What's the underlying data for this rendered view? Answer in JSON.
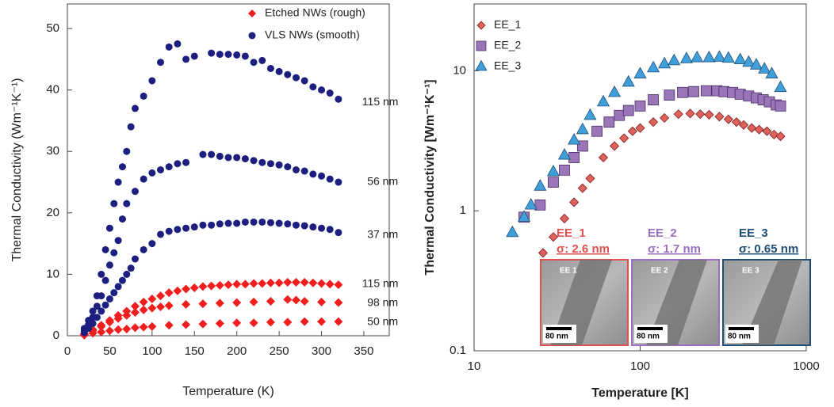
{
  "chart_data": [
    {
      "type": "scatter",
      "xlabel": "Temperature (K)",
      "ylabel": "Thermal Conductivity (Wm⁻¹K⁻¹)",
      "xlim": [
        0,
        380
      ],
      "ylim": [
        0,
        54
      ],
      "xticks": [
        0,
        50,
        100,
        150,
        200,
        250,
        300,
        350
      ],
      "yticks": [
        0,
        10,
        20,
        30,
        40,
        50
      ],
      "legend": "upper right",
      "series": [
        {
          "name": "Etched NWs (rough)",
          "color": "#f01e1e",
          "marker": "diamond",
          "x": [
            20,
            30,
            40,
            50,
            60,
            70,
            80,
            90,
            100,
            110,
            120,
            130,
            140,
            150,
            160,
            170,
            180,
            190,
            200,
            210,
            220,
            230,
            240,
            250,
            260,
            270,
            280,
            290,
            300,
            310,
            320,
            20,
            30,
            40,
            50,
            60,
            70,
            80,
            90,
            100,
            110,
            120,
            140,
            160,
            180,
            200,
            220,
            240,
            260,
            270,
            280,
            300,
            320,
            20,
            30,
            40,
            50,
            60,
            70,
            80,
            90,
            100,
            120,
            140,
            160,
            180,
            200,
            220,
            240,
            260,
            280,
            300,
            320
          ],
          "values": [
            0.3,
            1,
            1.7,
            2.5,
            3.3,
            4,
            4.8,
            5.5,
            6,
            6.5,
            7,
            7.3,
            7.6,
            7.8,
            8,
            8.1,
            8.2,
            8.3,
            8.4,
            8.4,
            8.5,
            8.5,
            8.6,
            8.6,
            8.7,
            8.7,
            8.7,
            8.6,
            8.5,
            8.4,
            8.3,
            0.2,
            0.8,
            1.5,
            2.2,
            2.8,
            3.3,
            3.8,
            4.2,
            4.5,
            4.7,
            4.9,
            5.1,
            5.2,
            5.3,
            5.4,
            5.5,
            5.6,
            5.9,
            5.8,
            5.6,
            5.5,
            5.4,
            0.1,
            0.4,
            0.6,
            0.8,
            1,
            1.1,
            1.3,
            1.4,
            1.5,
            1.7,
            1.8,
            1.9,
            2,
            2.1,
            2.1,
            2.2,
            2.2,
            2.3,
            2.3,
            2.3
          ]
        },
        {
          "name": "VLS NWs (smooth)",
          "color": "#1c1f7f",
          "marker": "circle",
          "x": [
            20,
            25,
            30,
            35,
            40,
            45,
            50,
            55,
            60,
            65,
            70,
            75,
            80,
            90,
            100,
            110,
            120,
            130,
            140,
            150,
            170,
            180,
            190,
            200,
            210,
            220,
            230,
            240,
            250,
            260,
            270,
            280,
            290,
            300,
            310,
            320,
            20,
            25,
            30,
            35,
            40,
            45,
            50,
            55,
            60,
            65,
            70,
            80,
            90,
            100,
            110,
            120,
            130,
            140,
            160,
            170,
            180,
            190,
            200,
            210,
            220,
            230,
            240,
            250,
            260,
            270,
            280,
            290,
            300,
            310,
            320,
            20,
            25,
            30,
            35,
            40,
            45,
            50,
            55,
            60,
            65,
            70,
            75,
            80,
            90,
            100,
            110,
            120,
            130,
            140,
            150,
            160,
            170,
            180,
            190,
            200,
            210,
            220,
            230,
            240,
            250,
            260,
            270,
            280,
            290,
            300,
            310,
            320
          ],
          "values": [
            1.2,
            2.5,
            4,
            6.5,
            10,
            14,
            17.5,
            21.5,
            25,
            27.5,
            30,
            34,
            37,
            39,
            41.5,
            44.5,
            47,
            47.5,
            45,
            45.5,
            46,
            45.8,
            45.8,
            45.7,
            45.5,
            44.5,
            44.8,
            43.5,
            43,
            42.5,
            42,
            41.5,
            40.5,
            40,
            39.5,
            38.5,
            0.8,
            1.8,
            3,
            4.8,
            6.5,
            9,
            11.5,
            13.5,
            15.5,
            19,
            21.5,
            23.5,
            25.5,
            26.5,
            27,
            27.5,
            28,
            28.2,
            29.5,
            29.5,
            29.2,
            29,
            29,
            28.8,
            28.5,
            28.2,
            28,
            27.8,
            27.5,
            27,
            26.8,
            26.3,
            26,
            25.5,
            25,
            0.5,
            1.2,
            2,
            3,
            4,
            5,
            6,
            7,
            8,
            9,
            10,
            11,
            12.5,
            14,
            15,
            16.5,
            17,
            17.3,
            17.5,
            17.7,
            18,
            18,
            18.2,
            18.3,
            18.3,
            18.5,
            18.5,
            18.5,
            18.4,
            18.3,
            18.2,
            18,
            17.9,
            17.7,
            17.5,
            17.3,
            16.8
          ]
        }
      ],
      "annotations": [
        {
          "text": "115 nm",
          "x": 348,
          "y": 38
        },
        {
          "text": "56 nm",
          "x": 354,
          "y": 25
        },
        {
          "text": "37 nm",
          "x": 354,
          "y": 16.4
        },
        {
          "text": "115 nm",
          "x": 348,
          "y": 8.4
        },
        {
          "text": "98 nm",
          "x": 354,
          "y": 5.3
        },
        {
          "text": "50 nm",
          "x": 354,
          "y": 2.2
        }
      ]
    },
    {
      "type": "scatter",
      "xlabel": "Temperature [K]",
      "ylabel": "Thermal Conductivity [Wm⁻¹K⁻¹]",
      "xscale": "log",
      "yscale": "log",
      "xlim": [
        10,
        1000
      ],
      "ylim": [
        0.1,
        30
      ],
      "xticks": [
        10,
        100,
        1000
      ],
      "yticks": [
        0.1,
        1,
        10
      ],
      "legend": "upper left",
      "series": [
        {
          "name": "EE_1",
          "color": "#e0605a",
          "edgecolor": "#7a2020",
          "marker": "diamond",
          "x": [
            26,
            30,
            35,
            40,
            45,
            50,
            60,
            70,
            80,
            90,
            100,
            120,
            140,
            170,
            200,
            230,
            260,
            300,
            340,
            380,
            420,
            470,
            520,
            580,
            640,
            700
          ],
          "values": [
            0.5,
            0.65,
            0.88,
            1.15,
            1.45,
            1.7,
            2.4,
            2.9,
            3.3,
            3.7,
            3.9,
            4.3,
            4.6,
            4.9,
            4.95,
            4.9,
            4.85,
            4.7,
            4.5,
            4.3,
            4.1,
            3.9,
            3.8,
            3.7,
            3.5,
            3.4
          ]
        },
        {
          "name": "EE_2",
          "color": "#9a76b8",
          "edgecolor": "#4a2f6a",
          "marker": "square",
          "x": [
            20,
            25,
            30,
            35,
            40,
            45,
            55,
            65,
            75,
            85,
            100,
            120,
            150,
            180,
            210,
            250,
            290,
            320,
            360,
            400,
            450,
            500,
            550,
            600,
            660,
            700
          ],
          "values": [
            0.9,
            1.1,
            1.6,
            1.95,
            2.4,
            2.9,
            3.7,
            4.3,
            4.8,
            5.2,
            5.6,
            6.2,
            6.7,
            7,
            7.1,
            7.2,
            7.2,
            7.1,
            7,
            6.8,
            6.6,
            6.4,
            6.2,
            6,
            5.7,
            5.6
          ]
        },
        {
          "name": "EE_3",
          "color": "#3f9fd8",
          "edgecolor": "#1f4f7a",
          "marker": "triangle",
          "x": [
            17,
            20,
            22,
            25,
            30,
            35,
            40,
            45,
            50,
            60,
            70,
            85,
            100,
            120,
            140,
            160,
            190,
            220,
            260,
            300,
            340,
            400,
            450,
            500,
            560,
            620,
            700
          ],
          "values": [
            0.7,
            0.9,
            1.1,
            1.5,
            1.9,
            2.5,
            3.2,
            3.8,
            4.8,
            6,
            7,
            8.3,
            9.5,
            10.5,
            11.2,
            11.8,
            12.2,
            12.4,
            12.4,
            12.5,
            12.3,
            12,
            11.5,
            11,
            10.3,
            9.5,
            7.6
          ]
        }
      ],
      "insets": [
        {
          "title": "EE_1",
          "sigma": "σ: 2.6 nm",
          "tag": "EE 1",
          "scale": "80 nm",
          "color": "#e05050"
        },
        {
          "title": "EE_2",
          "sigma": "σ: 1.7 nm",
          "tag": "EE 2",
          "scale": "80 nm",
          "color": "#9b6fc0"
        },
        {
          "title": "EE_3",
          "sigma": "σ: 0.65 nm",
          "tag": "EE 3",
          "scale": "80 nm",
          "color": "#1f4e79"
        }
      ]
    }
  ]
}
